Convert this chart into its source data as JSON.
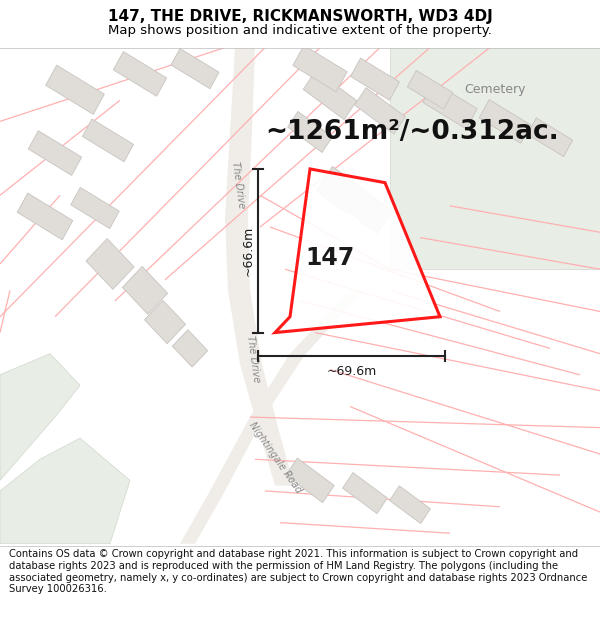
{
  "title_line1": "147, THE DRIVE, RICKMANSWORTH, WD3 4DJ",
  "title_line2": "Map shows position and indicative extent of the property.",
  "footer_text": "Contains OS data © Crown copyright and database right 2021. This information is subject to Crown copyright and database rights 2023 and is reproduced with the permission of HM Land Registry. The polygons (including the associated geometry, namely x, y co-ordinates) are subject to Crown copyright and database rights 2023 Ordnance Survey 100026316.",
  "area_text": "~1261m²/~0.312ac.",
  "label_147": "147",
  "dim_vertical": "~66.6m",
  "dim_horizontal": "~69.6m",
  "cemetery_label": "Cemetery",
  "road_label_drive_upper": "The Drive",
  "road_label_drive_lower": "The Drive",
  "road_label_nightingale": "Nightingale Road",
  "map_bg": "#ffffff",
  "green_color": "#e8ede5",
  "road_color": "#f0ede8",
  "property_poly_color": "#ff0000",
  "property_poly_lw": 2.2,
  "parcel_line_color": "#ffb0b0",
  "parcel_line_lw": 0.9,
  "building_fc": "#e0dcd8",
  "building_ec": "#c8c4c0",
  "building_lw": 0.6,
  "dim_line_color": "#222222",
  "title_fontsize": 11,
  "subtitle_fontsize": 9.5,
  "footer_fontsize": 7.2,
  "area_fontsize": 19,
  "label_fontsize": 17,
  "dim_fontsize": 9,
  "road_label_fontsize": 7,
  "cemetery_fontsize": 9
}
